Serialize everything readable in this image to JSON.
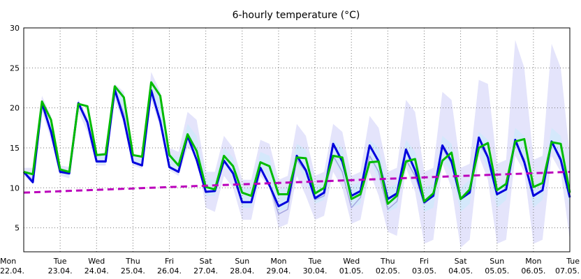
{
  "chart_data": {
    "type": "line",
    "title": "6-hourly temperature (°C)",
    "xlabel": "",
    "ylabel": "",
    "ylim": [
      2,
      30
    ],
    "yticks": [
      5,
      10,
      15,
      20,
      25,
      30
    ],
    "grid": true,
    "x_day_labels": [
      {
        "weekday": "Mon",
        "date": "22.04."
      },
      {
        "weekday": "Tue",
        "date": "23.04."
      },
      {
        "weekday": "Wed",
        "date": "24.04."
      },
      {
        "weekday": "Thu",
        "date": "25.04."
      },
      {
        "weekday": "Fri",
        "date": "26.04."
      },
      {
        "weekday": "Sat",
        "date": "27.04."
      },
      {
        "weekday": "Sun",
        "date": "28.04."
      },
      {
        "weekday": "Mon",
        "date": "29.04."
      },
      {
        "weekday": "Tue",
        "date": "30.04."
      },
      {
        "weekday": "Wed",
        "date": "01.05."
      },
      {
        "weekday": "Thu",
        "date": "02.05."
      },
      {
        "weekday": "Fri",
        "date": "03.05."
      },
      {
        "weekday": "Sat",
        "date": "04.05."
      },
      {
        "weekday": "Sun",
        "date": "05.05."
      },
      {
        "weekday": "Mon",
        "date": "06.05."
      },
      {
        "weekday": "Tue",
        "date": "07.05."
      }
    ],
    "steps_per_day": 4,
    "series": [
      {
        "role": "ensemble outer range",
        "color": "#e4e4fb",
        "low": [
          11.5,
          10.5,
          19.5,
          16.0,
          11.5,
          11.2,
          19.5,
          17.0,
          12.8,
          12.8,
          21.0,
          18.0,
          12.8,
          12.4,
          21.0,
          17.5,
          12.2,
          11.5,
          15.0,
          14.2,
          7.5,
          7.0,
          11.5,
          10.0,
          6.0,
          6.0,
          11.5,
          10.0,
          5.0,
          5.5,
          11.5,
          9.0,
          6.0,
          6.5,
          12.0,
          10.0,
          5.5,
          6.0,
          12.0,
          9.0,
          4.5,
          4.0,
          12.5,
          9.5,
          3.0,
          3.5,
          13.0,
          10.0,
          2.5,
          3.5,
          14.0,
          11.0,
          3.0,
          3.5,
          14.0,
          12.0,
          3.0,
          3.5,
          14.0,
          12.0,
          3.5
        ],
        "high": [
          12.5,
          12.5,
          21.5,
          19.0,
          12.8,
          12.6,
          21.0,
          19.0,
          14.2,
          14.5,
          23.0,
          22.0,
          14.0,
          14.0,
          24.5,
          22.0,
          15.0,
          14.5,
          19.5,
          18.5,
          12.0,
          12.0,
          16.5,
          15.0,
          11.0,
          11.0,
          16.0,
          15.5,
          11.0,
          11.5,
          18.0,
          16.5,
          11.5,
          12.0,
          18.0,
          17.0,
          11.5,
          12.0,
          19.0,
          17.5,
          12.0,
          12.5,
          21.0,
          19.5,
          12.0,
          12.5,
          22.0,
          21.0,
          12.5,
          13.0,
          23.5,
          23.0,
          13.0,
          13.5,
          28.5,
          25.0,
          13.5,
          14.0,
          28.0,
          25.0,
          14.0
        ]
      },
      {
        "role": "ensemble inner range",
        "color": "#d4e8fb",
        "low": [
          11.8,
          10.8,
          20.0,
          16.8,
          11.8,
          11.5,
          20.2,
          17.8,
          13.0,
          13.0,
          21.5,
          18.8,
          13.0,
          12.7,
          21.5,
          18.0,
          12.5,
          12.0,
          16.0,
          15.0,
          9.0,
          9.0,
          13.0,
          11.5,
          7.5,
          7.5,
          12.5,
          11.0,
          7.0,
          7.5,
          13.0,
          11.0,
          8.0,
          8.5,
          13.5,
          11.5,
          7.5,
          8.0,
          13.5,
          11.0,
          7.0,
          7.5,
          13.5,
          11.0,
          7.0,
          7.5,
          13.5,
          12.0,
          7.0,
          8.0,
          14.5,
          12.5,
          7.5,
          8.5,
          15.0,
          13.0,
          7.5,
          8.5,
          15.0,
          13.0,
          7.5
        ],
        "high": [
          12.2,
          12.0,
          21.0,
          18.0,
          12.5,
          12.2,
          21.0,
          18.5,
          14.0,
          14.2,
          22.8,
          21.8,
          13.8,
          13.6,
          23.5,
          22.0,
          14.3,
          13.8,
          18.0,
          16.5,
          11.0,
          11.0,
          15.0,
          13.8,
          10.0,
          10.0,
          14.5,
          14.0,
          9.8,
          10.2,
          15.5,
          14.8,
          10.2,
          10.8,
          16.0,
          15.0,
          10.2,
          10.8,
          16.0,
          15.0,
          10.0,
          10.5,
          16.0,
          14.5,
          10.0,
          10.5,
          16.5,
          15.5,
          10.0,
          11.0,
          17.0,
          16.0,
          10.0,
          11.0,
          17.5,
          16.5,
          10.5,
          11.0,
          17.5,
          16.5,
          10.5
        ]
      },
      {
        "role": "ensemble mean",
        "color": "#a6a6e0",
        "values": [
          12.0,
          11.0,
          20.6,
          17.0,
          12.0,
          11.8,
          20.6,
          18.2,
          13.4,
          13.4,
          22.3,
          19.3,
          13.2,
          12.9,
          22.2,
          18.6,
          12.6,
          12.0,
          16.5,
          13.5,
          9.6,
          9.6,
          13.4,
          12.0,
          8.3,
          8.2,
          12.5,
          10.4,
          6.7,
          7.3,
          13.5,
          12.0,
          8.5,
          9.0,
          14.0,
          12.0,
          7.5,
          8.8,
          14.0,
          12.0,
          7.3,
          8.3,
          13.5,
          11.5,
          8.0,
          9.0,
          15.0,
          13.0,
          8.7,
          9.5,
          15.5,
          13.8,
          9.2,
          9.7,
          15.6,
          13.6,
          9.0,
          9.7,
          15.8,
          13.8,
          9.0
        ]
      },
      {
        "role": "model run 1",
        "color": "#0000dd",
        "values": [
          12.0,
          10.7,
          20.6,
          17.0,
          12.0,
          11.8,
          20.6,
          18.2,
          13.3,
          13.3,
          22.3,
          18.6,
          13.2,
          12.8,
          22.2,
          18.3,
          12.6,
          12.0,
          16.5,
          13.5,
          9.5,
          9.6,
          13.4,
          11.8,
          8.2,
          8.2,
          12.5,
          10.3,
          7.7,
          8.3,
          14.0,
          12.2,
          8.7,
          9.4,
          15.5,
          13.3,
          9.0,
          9.6,
          15.3,
          13.3,
          8.6,
          9.3,
          14.8,
          12.2,
          8.2,
          9.0,
          15.3,
          13.3,
          8.6,
          9.4,
          16.3,
          13.8,
          9.2,
          9.8,
          16.0,
          13.2,
          9.0,
          9.7,
          15.8,
          13.5,
          8.8
        ]
      },
      {
        "role": "model run 2",
        "color": "#00bb00",
        "values": [
          12.0,
          11.7,
          20.8,
          18.5,
          12.3,
          12.0,
          20.5,
          20.2,
          14.1,
          14.2,
          22.7,
          21.3,
          14.1,
          13.9,
          23.2,
          21.5,
          14.1,
          12.8,
          16.7,
          14.6,
          10.1,
          9.8,
          14.0,
          12.7,
          9.4,
          9.0,
          13.2,
          12.7,
          9.2,
          9.2,
          13.8,
          13.7,
          9.3,
          10.0,
          14.0,
          13.8,
          8.6,
          9.2,
          13.2,
          13.3,
          8.0,
          9.0,
          13.3,
          13.6,
          8.3,
          9.3,
          13.4,
          14.4,
          8.6,
          9.8,
          15.0,
          15.6,
          9.7,
          10.5,
          15.8,
          16.1,
          10.1,
          10.6,
          15.7,
          15.5,
          9.4
        ]
      },
      {
        "role": "trend",
        "color": "#bb00bb",
        "start": 9.4,
        "end": 12.0
      }
    ]
  }
}
